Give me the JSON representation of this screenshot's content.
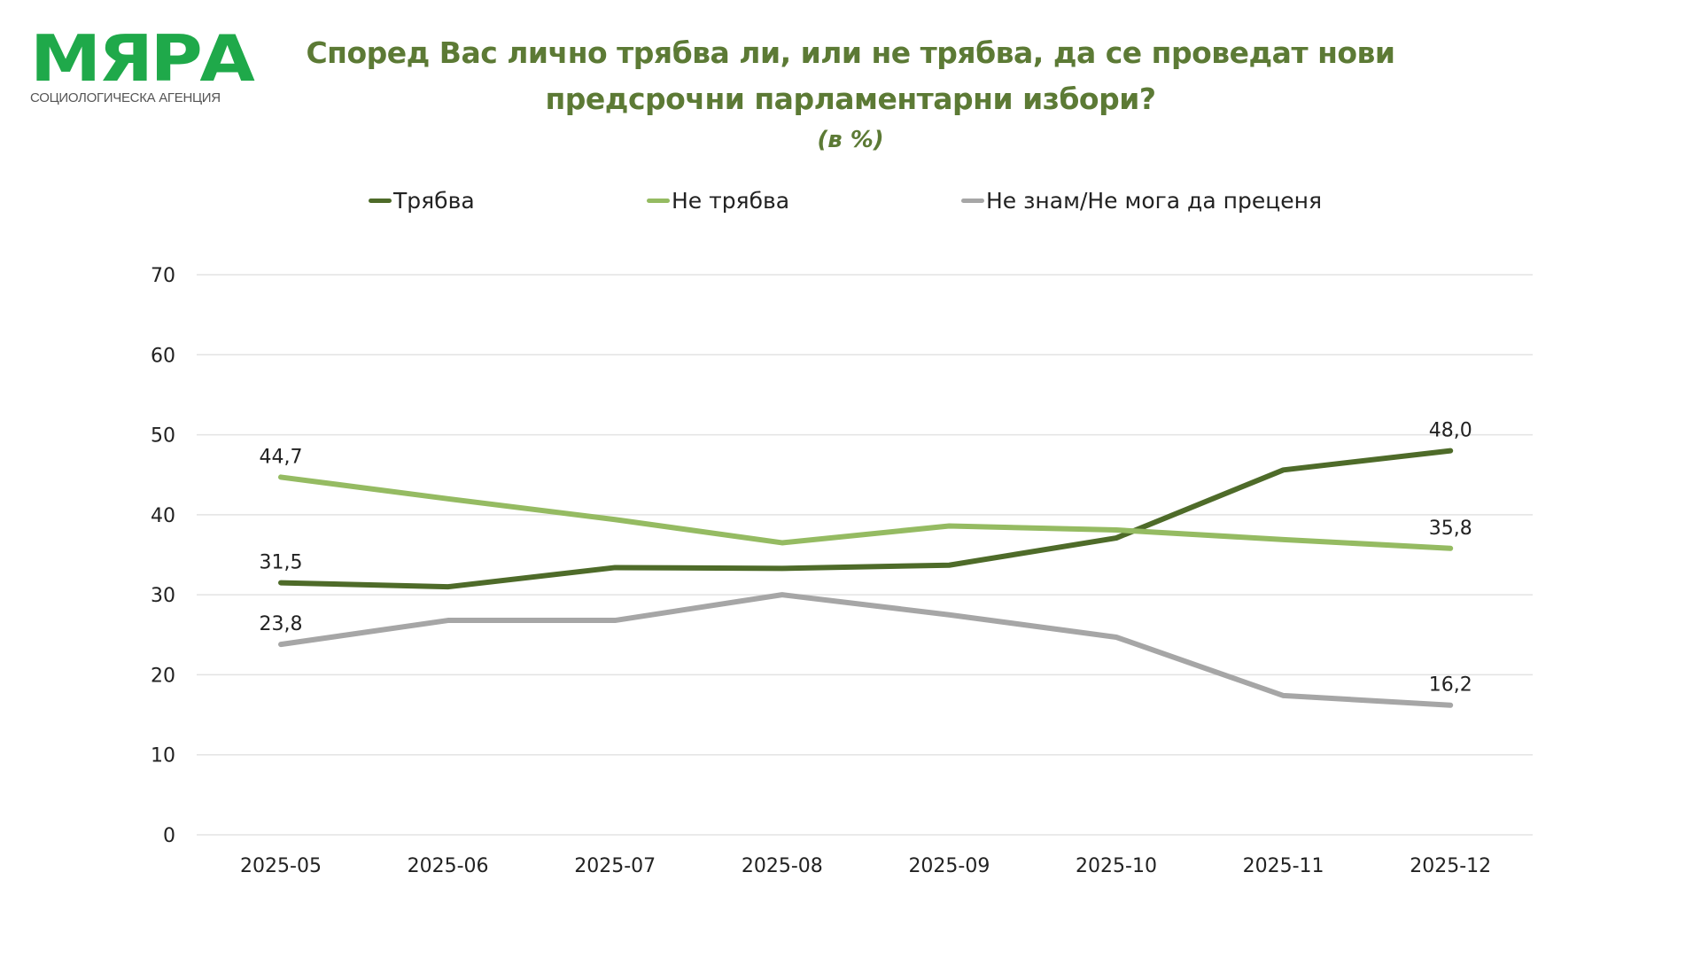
{
  "logo": {
    "name": "МЯРА",
    "tagline": "СОЦИОЛОГИЧЕСКА АГЕНЦИЯ",
    "color": "#1fa94a"
  },
  "header": {
    "title_line1": "Според Вас лично трябва ли, или не трябва, да се проведат нови",
    "title_line2": "предсрочни парламентарни избори?",
    "subtitle": "(в %)"
  },
  "chart_data": {
    "type": "line",
    "title": "Според Вас лично трябва ли, или не трябва, да се проведат нови предсрочни парламентарни избори?",
    "subtitle": "(в %)",
    "xlabel": "",
    "ylabel": "",
    "x": [
      "2025-05",
      "2025-06",
      "2025-07",
      "2025-08",
      "2025-09",
      "2025-10",
      "2025-11",
      "2025-12"
    ],
    "yticks": [
      "0",
      "10",
      "20",
      "30",
      "40",
      "50",
      "60",
      "70"
    ],
    "ylim": [
      0,
      70
    ],
    "grid": true,
    "legend_position": "top",
    "series": [
      {
        "name": "Трябва",
        "color": "#4e6b29",
        "values": [
          31.5,
          31.0,
          33.4,
          33.3,
          33.7,
          37.1,
          45.6,
          48.0
        ],
        "labels": [
          {
            "index": 0,
            "text": "31,5"
          },
          {
            "index": 7,
            "text": "48,0"
          }
        ]
      },
      {
        "name": "Не трябва",
        "color": "#95bb62",
        "values": [
          44.7,
          42.0,
          39.4,
          36.5,
          38.6,
          38.1,
          36.9,
          35.8
        ],
        "labels": [
          {
            "index": 0,
            "text": "44,7"
          },
          {
            "index": 7,
            "text": "35,8"
          }
        ]
      },
      {
        "name": "Не знам/Не мога да преценя",
        "color": "#a6a6a6",
        "values": [
          23.8,
          26.8,
          26.8,
          30.0,
          27.5,
          24.7,
          17.4,
          16.2
        ],
        "labels": [
          {
            "index": 0,
            "text": "23,8"
          },
          {
            "index": 7,
            "text": "16,2"
          }
        ]
      }
    ]
  }
}
